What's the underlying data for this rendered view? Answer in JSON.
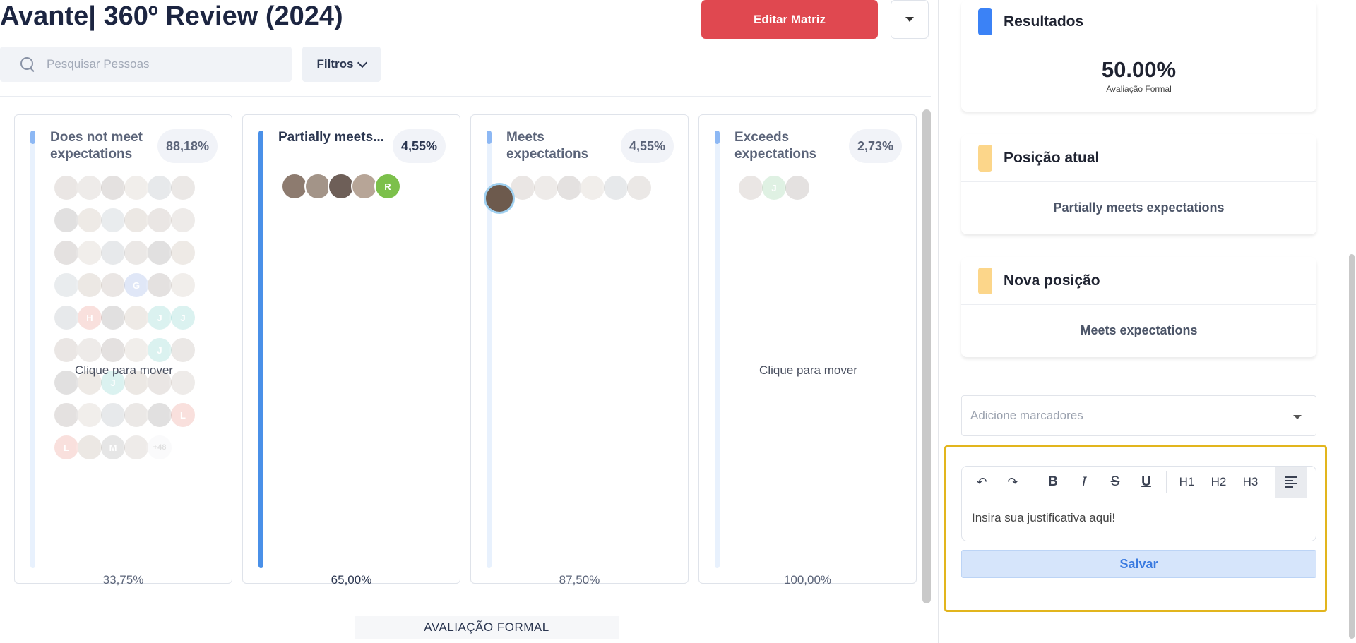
{
  "header": {
    "title": "Avante| 360º Review (2024)",
    "edit_button": "Editar Matriz"
  },
  "search": {
    "placeholder": "Pesquisar Pessoas"
  },
  "filters_label": "Filtros",
  "columns": [
    {
      "title": "Does not meet expectations",
      "percent": "88,18%",
      "footer": "33,75%",
      "hint": "Clique para mover",
      "fill": 0.03
    },
    {
      "title": "Partially meets...",
      "percent": "4,55%",
      "footer": "65,00%",
      "hint": "",
      "fill": 1.0
    },
    {
      "title": "Meets expectations",
      "percent": "4,55%",
      "footer": "87,50%",
      "hint": "",
      "fill": 0.03
    },
    {
      "title": "Exceeds expectations",
      "percent": "2,73%",
      "footer": "100,00%",
      "hint": "Clique para mover",
      "fill": 0.03
    }
  ],
  "col1_avatars": [
    "",
    "",
    "",
    "",
    "",
    "",
    "",
    "",
    "",
    "",
    "",
    "",
    "",
    "",
    "",
    "",
    "",
    "",
    "",
    "",
    "",
    "G",
    "",
    "",
    "",
    "H",
    "",
    "",
    "J",
    "J",
    "",
    "",
    "",
    "",
    "J",
    "",
    "",
    "",
    "J",
    "",
    "",
    "",
    "",
    "",
    "",
    "",
    "",
    "L",
    "L",
    "",
    "M",
    "",
    "+48"
  ],
  "col2_avatars": [
    "",
    "",
    "",
    "",
    "R"
  ],
  "col3_avatars": [
    "",
    "",
    "",
    "",
    "",
    ""
  ],
  "col4_avatars": [
    "",
    "J",
    ""
  ],
  "bottom_axis_label": "AVALIAÇÃO FORMAL",
  "panel": {
    "results": {
      "title": "Resultados",
      "value": "50.00%",
      "caption": "Avaliação Formal",
      "color": "#3b82f6"
    },
    "current": {
      "title": "Posição atual",
      "value": "Partially meets expectations",
      "color": "#fcd68a"
    },
    "new": {
      "title": "Nova posição",
      "value": "Meets expectations",
      "color": "#fcd68a"
    },
    "tags_placeholder": "Adicione marcadores",
    "editor": {
      "toolbar": [
        "undo-icon",
        "redo-icon",
        "B",
        "I",
        "S",
        "U",
        "H1",
        "H2",
        "H3",
        "align-left-icon"
      ],
      "placeholder": "Insira sua justificativa aqui!"
    },
    "save_label": "Salvar"
  }
}
